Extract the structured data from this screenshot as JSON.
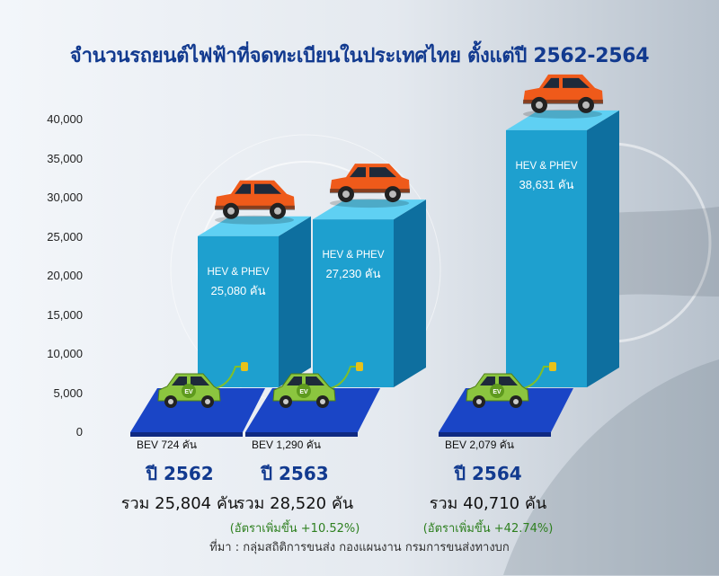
{
  "chart_data": {
    "type": "bar",
    "title": "จำนวนรถยนต์ไฟฟ้าที่จดทะเบียนในประเทศไทย ตั้งแต่ปี 2562-2564",
    "ylim": [
      0,
      40000
    ],
    "y_ticks": [
      "0",
      "5,000",
      "10,000",
      "15,000",
      "20,000",
      "25,000",
      "30,000",
      "35,000",
      "40,000"
    ],
    "categories": [
      "2562",
      "2563",
      "2564"
    ],
    "series": [
      {
        "name": "HEV & PHEV",
        "values": [
          25080,
          27230,
          38631
        ],
        "labels": [
          "25,080 คัน",
          "27,230 คัน",
          "38,631 คัน"
        ]
      },
      {
        "name": "BEV",
        "values": [
          724,
          1290,
          2079
        ],
        "labels": [
          "724 คัน",
          "1,290 คัน",
          "2,079 คัน"
        ]
      }
    ],
    "colors": {
      "hev": "#1ea0cf",
      "bev": "#1a45c6",
      "car": "#ef5a1a",
      "ev_car": "#8bc53f"
    }
  },
  "years": [
    {
      "year": "ปี 2562",
      "total": "รวม 25,804 คัน",
      "growth": ""
    },
    {
      "year": "ปี 2563",
      "total": "รวม 28,520 คัน",
      "growth": "(อัตราเพิ่มขึ้น +10.52%)"
    },
    {
      "year": "ปี 2564",
      "total": "รวม 40,710 คัน",
      "growth": "(อัตราเพิ่มขึ้น +42.74%)"
    }
  ],
  "source": "ที่มา : กลุ่มสถิติการขนส่ง กองแผนงาน กรมการขนส่งทางบก"
}
